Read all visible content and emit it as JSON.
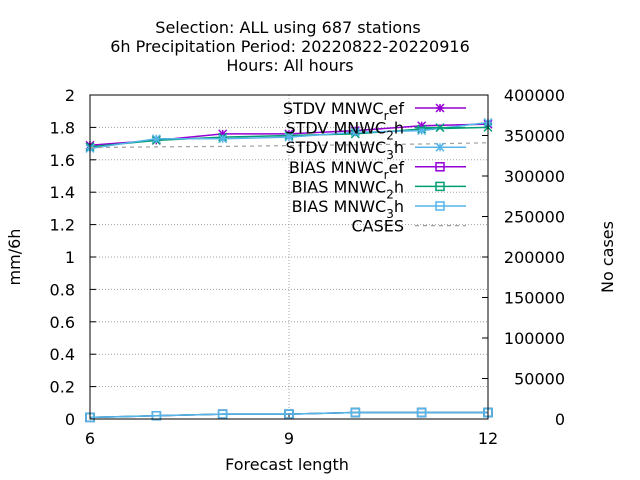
{
  "chart_data": {
    "type": "line",
    "title": [
      "Selection: ALL using   687 stations",
      "6h Precipitation   Period: 20220822-20220916",
      "Hours:  All hours"
    ],
    "xlabel": "Forecast length",
    "ylabel": "mm/6h",
    "y2label": "No cases",
    "xlim": [
      6,
      12
    ],
    "ylim": [
      0,
      2
    ],
    "y2lim": [
      0,
      400000
    ],
    "xticks": [
      "6",
      "9",
      "12"
    ],
    "yticks": [
      "0",
      "0.2",
      "0.4",
      "0.6",
      "0.8",
      "1",
      "1.2",
      "1.4",
      "1.6",
      "1.8",
      "2"
    ],
    "y2ticks": [
      "0",
      "50000",
      "100000",
      "150000",
      "200000",
      "250000",
      "300000",
      "350000",
      "400000"
    ],
    "grid": true,
    "legend_position": "top-right",
    "x": [
      6,
      7,
      8,
      9,
      10,
      11,
      12
    ],
    "series": [
      {
        "name": "STDV MNWC_ref",
        "label_main": "STDV MNWC",
        "label_sub": "r",
        "label_tail": "ef",
        "color": "#9400d3",
        "marker": "star",
        "axis": "y",
        "values": [
          1.69,
          1.72,
          1.76,
          1.76,
          1.78,
          1.81,
          1.82
        ]
      },
      {
        "name": "STDV MNWC_2h",
        "label_main": "STDV MNWC",
        "label_sub": "2",
        "label_tail": "h",
        "color": "#009e73",
        "marker": "x",
        "axis": "y",
        "values": [
          1.68,
          1.72,
          1.74,
          1.75,
          1.76,
          1.79,
          1.8
        ]
      },
      {
        "name": "STDV MNWC_3h",
        "label_main": "STDV MNWC",
        "label_sub": "3",
        "label_tail": "h",
        "color": "#56b4e9",
        "marker": "star",
        "axis": "y",
        "values": [
          1.67,
          1.73,
          1.73,
          1.74,
          1.77,
          1.78,
          1.83
        ]
      },
      {
        "name": "BIAS MNWC_ref",
        "label_main": "BIAS MNWC",
        "label_sub": "r",
        "label_tail": "ef",
        "color": "#9400d3",
        "marker": "square",
        "axis": "y",
        "values": [
          0.01,
          0.02,
          0.03,
          0.03,
          0.04,
          0.04,
          0.04
        ]
      },
      {
        "name": "BIAS MNWC_2h",
        "label_main": "BIAS MNWC",
        "label_sub": "2",
        "label_tail": "h",
        "color": "#009e73",
        "marker": "square",
        "axis": "y",
        "values": [
          0.01,
          0.02,
          0.03,
          0.03,
          0.04,
          0.04,
          0.04
        ]
      },
      {
        "name": "BIAS MNWC_3h",
        "label_main": "BIAS MNWC",
        "label_sub": "3",
        "label_tail": "h",
        "color": "#56b4e9",
        "marker": "square",
        "axis": "y",
        "values": [
          0.01,
          0.02,
          0.03,
          0.03,
          0.04,
          0.04,
          0.04
        ]
      },
      {
        "name": "CASES",
        "label_main": "CASES",
        "label_sub": "",
        "label_tail": "",
        "color": "#a0a0a0",
        "marker": "none",
        "dashed": true,
        "axis": "y2",
        "values": [
          335000,
          336000,
          336500,
          337500,
          338500,
          339500,
          341000
        ]
      }
    ]
  }
}
